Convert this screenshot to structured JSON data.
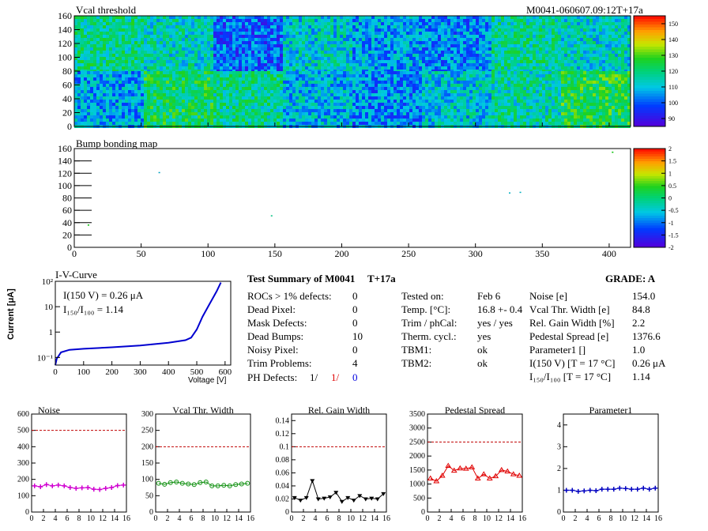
{
  "vcal_map": {
    "title": "Vcal threshold",
    "module_label": "M0041-060607.09:12T+17a",
    "x_ticks": [
      "0",
      "50",
      "100",
      "150",
      "200",
      "250",
      "300",
      "350",
      "400"
    ],
    "y_ticks": [
      "0",
      "20",
      "40",
      "60",
      "80",
      "100",
      "120",
      "140",
      "160"
    ],
    "z_ticks": [
      "90",
      "100",
      "110",
      "120",
      "130",
      "140",
      "150"
    ],
    "roc_means_top": [
      118,
      114,
      100,
      112,
      106,
      104,
      117,
      113
    ],
    "roc_means_bottom": [
      107,
      122,
      118,
      109,
      104,
      111,
      116,
      124
    ],
    "colors": {
      "low": "#4a00d8",
      "mid": "#00c8c8",
      "high": "#ff2000"
    }
  },
  "bump_map": {
    "title": "Bump bonding map",
    "x_ticks": [
      "0",
      "50",
      "100",
      "150",
      "200",
      "250",
      "300",
      "350",
      "400"
    ],
    "y_ticks": [
      "0",
      "20",
      "40",
      "60",
      "80",
      "100",
      "120",
      "140",
      "160"
    ],
    "z_ticks": [
      "-2",
      "-1.5",
      "-1",
      "-0.5",
      "0",
      "0.5",
      "1",
      "1.5",
      "2"
    ]
  },
  "iv_curve": {
    "title": "I-V-Curve",
    "ylabel": "Current [μA]",
    "xlabel": "Voltage [V]",
    "x_ticks": [
      "0",
      "100",
      "200",
      "300",
      "400",
      "500",
      "600"
    ],
    "y_ticks": [
      "10⁻¹",
      "1",
      "10",
      "10²"
    ],
    "annotation_1": "I(150 V) = 0.26 μA",
    "annotation_2": "I₁₅₀/I₁₀₀ =  1.14"
  },
  "summary": {
    "title": "Test Summary of M0041",
    "tag": "T+17a",
    "grade": "GRADE:  A",
    "left_rows": [
      {
        "label": "ROCs > 1% defects:",
        "value": "0"
      },
      {
        "label": "Dead Pixel:",
        "value": "0"
      },
      {
        "label": "Mask Defects:",
        "value": "0"
      },
      {
        "label": "Dead Bumps:",
        "value": "10"
      },
      {
        "label": "Noisy Pixel:",
        "value": "0"
      },
      {
        "label": "Trim Problems:",
        "value": "4"
      }
    ],
    "ph_label": "PH Defects:",
    "ph_values": [
      "1/",
      "1/",
      "0"
    ],
    "ph_colors": [
      "#000000",
      "#e00000",
      "#0000e0"
    ],
    "mid_rows": [
      {
        "label": "Tested on:",
        "value": "Feb 6"
      },
      {
        "label": "Temp. [°C]:",
        "value": "16.8 +- 0.4"
      },
      {
        "label": "Trim / phCal:",
        "value": "yes / yes"
      },
      {
        "label": "Therm. cycl.:",
        "value": "yes"
      },
      {
        "label": "TBM1:",
        "value": "ok"
      },
      {
        "label": "TBM2:",
        "value": "ok"
      }
    ],
    "right_rows": [
      {
        "label": "Noise [e]",
        "value": "154.0"
      },
      {
        "label": "Vcal Thr. Width [e]",
        "value": "84.8"
      },
      {
        "label": "Rel. Gain Width [%]",
        "value": "2.2"
      },
      {
        "label": "Pedestal Spread [e]",
        "value": "1376.6"
      },
      {
        "label": "Parameter1 []",
        "value": "1.0"
      },
      {
        "label": "I(150 V) [T = 17 °C]",
        "value": "0.26 μA"
      },
      {
        "label": "I₁₅₀/I₁₀₀  [T = 17 °C]",
        "value": "1.14"
      }
    ]
  },
  "chart_data": [
    {
      "type": "line",
      "title": "Noise",
      "x": [
        0,
        1,
        2,
        3,
        4,
        5,
        6,
        7,
        8,
        9,
        10,
        11,
        12,
        13,
        14,
        15
      ],
      "values": [
        160,
        155,
        168,
        160,
        165,
        160,
        150,
        145,
        148,
        150,
        140,
        138,
        145,
        150,
        162,
        165
      ],
      "ylim": [
        0,
        600
      ],
      "xlim": [
        0,
        16
      ],
      "limit": 500,
      "y_ticks": [
        "0",
        "100",
        "200",
        "300",
        "400",
        "500",
        "600"
      ],
      "x_ticks": [
        "0",
        "2",
        "4",
        "6",
        "8",
        "10",
        "12",
        "14",
        "16"
      ],
      "color": "#d000d0",
      "marker": "plus"
    },
    {
      "type": "line",
      "title": "Vcal Thr. Width",
      "x": [
        0,
        1,
        2,
        3,
        4,
        5,
        6,
        7,
        8,
        9,
        10,
        11,
        12,
        13,
        14,
        15
      ],
      "values": [
        88,
        85,
        90,
        92,
        88,
        86,
        84,
        90,
        92,
        80,
        80,
        82,
        80,
        84,
        86,
        88
      ],
      "ylim": [
        0,
        300
      ],
      "xlim": [
        0,
        16
      ],
      "limit": 200,
      "y_ticks": [
        "0",
        "50",
        "100",
        "150",
        "200",
        "250",
        "300"
      ],
      "x_ticks": [
        "0",
        "2",
        "4",
        "6",
        "8",
        "10",
        "12",
        "14",
        "16"
      ],
      "color": "#109010",
      "marker": "circle"
    },
    {
      "type": "line",
      "title": "Rel. Gain Width",
      "x": [
        0,
        1,
        2,
        3,
        4,
        5,
        6,
        7,
        8,
        9,
        10,
        11,
        12,
        13,
        14,
        15
      ],
      "values": [
        0.022,
        0.018,
        0.022,
        0.048,
        0.02,
        0.021,
        0.023,
        0.03,
        0.016,
        0.022,
        0.018,
        0.025,
        0.02,
        0.021,
        0.02,
        0.028
      ],
      "ylim": [
        0,
        0.15
      ],
      "xlim": [
        0,
        16
      ],
      "limit": 0.1,
      "y_ticks": [
        "0",
        "0.02",
        "0.04",
        "0.06",
        "0.08",
        "0.1",
        "0.12",
        "0.14"
      ],
      "x_ticks": [
        "0",
        "2",
        "4",
        "6",
        "8",
        "10",
        "12",
        "14",
        "16"
      ],
      "color": "#000000",
      "marker": "triangle-down"
    },
    {
      "type": "line",
      "title": "Pedestal Spread",
      "x": [
        0,
        1,
        2,
        3,
        4,
        5,
        6,
        7,
        8,
        9,
        10,
        11,
        12,
        13,
        14,
        15
      ],
      "values": [
        1200,
        1100,
        1300,
        1650,
        1480,
        1560,
        1550,
        1600,
        1200,
        1350,
        1200,
        1280,
        1500,
        1450,
        1350,
        1300
      ],
      "ylim": [
        0,
        3500
      ],
      "xlim": [
        0,
        16
      ],
      "limit": 2500,
      "y_ticks": [
        "0",
        "500",
        "1000",
        "1500",
        "2000",
        "2500",
        "3000",
        "3500"
      ],
      "x_ticks": [
        "0",
        "2",
        "4",
        "6",
        "8",
        "10",
        "12",
        "14",
        "16"
      ],
      "color": "#e00000",
      "marker": "triangle-up"
    },
    {
      "type": "line",
      "title": "Parameter1",
      "x": [
        0,
        1,
        2,
        3,
        4,
        5,
        6,
        7,
        8,
        9,
        10,
        11,
        12,
        13,
        14,
        15
      ],
      "values": [
        1.0,
        1.0,
        0.95,
        0.97,
        1.0,
        0.98,
        1.05,
        1.05,
        1.05,
        1.1,
        1.08,
        1.05,
        1.05,
        1.1,
        1.05,
        1.1
      ],
      "ylim": [
        0,
        4.5
      ],
      "xlim": [
        0,
        16
      ],
      "limit": null,
      "y_ticks": [
        "0",
        "1",
        "2",
        "3",
        "4"
      ],
      "x_ticks": [
        "0",
        "2",
        "4",
        "6",
        "8",
        "10",
        "12",
        "14",
        "16"
      ],
      "color": "#0000c0",
      "marker": "plus"
    }
  ]
}
